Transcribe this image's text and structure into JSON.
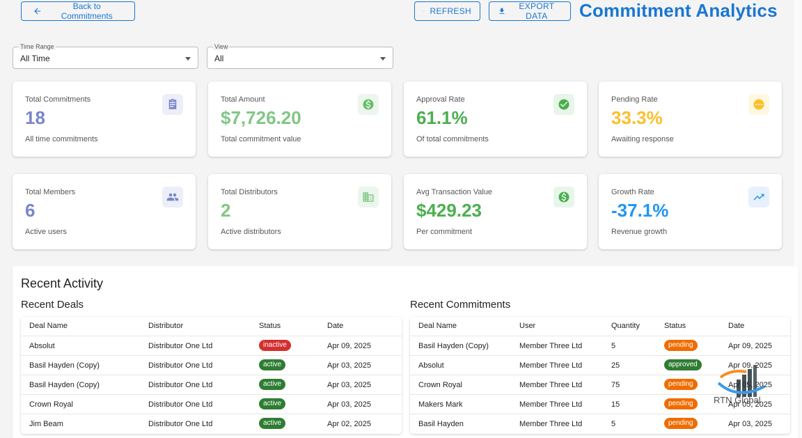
{
  "header": {
    "back_label": "Back to Commitments",
    "refresh_label": "Refresh",
    "export_label": "Export Data",
    "title": "Commitment Analytics"
  },
  "filters": {
    "time_range": {
      "label": "Time Range",
      "value": "All Time"
    },
    "view": {
      "label": "View",
      "value": "All"
    }
  },
  "cards": [
    {
      "title": "Total Commitments",
      "value": "18",
      "sub": "All time commitments",
      "color": "#7986cb",
      "icon": "clipboard-icon"
    },
    {
      "title": "Total Amount",
      "value": "$7,726.20",
      "sub": "Total commitment value",
      "color": "#81c784",
      "icon": "dollar-icon"
    },
    {
      "title": "Approval Rate",
      "value": "61.1%",
      "sub": "Of total commitments",
      "color": "#4caf50",
      "icon": "check-circle-icon"
    },
    {
      "title": "Pending Rate",
      "value": "33.3%",
      "sub": "Awaiting response",
      "color": "#fbc02d",
      "icon": "pending-icon"
    },
    {
      "title": "Total Members",
      "value": "6",
      "sub": "Active users",
      "color": "#7986cb",
      "icon": "people-icon"
    },
    {
      "title": "Total Distributors",
      "value": "2",
      "sub": "Active distributors",
      "color": "#81c784",
      "icon": "building-icon"
    },
    {
      "title": "Avg Transaction Value",
      "value": "$429.23",
      "sub": "Per commitment",
      "color": "#4caf50",
      "icon": "dollar-icon"
    },
    {
      "title": "Growth Rate",
      "value": "-37.1%",
      "sub": "Revenue growth",
      "color": "#2196f3",
      "icon": "trending-up-icon"
    }
  ],
  "activity": {
    "title": "Recent Activity",
    "deals": {
      "title": "Recent Deals",
      "columns": [
        "Deal Name",
        "Distributor",
        "Status",
        "Date"
      ],
      "rows": [
        {
          "deal": "Absolut",
          "distributor": "Distributor One Ltd",
          "status": "inactive",
          "date": "Apr 09, 2025"
        },
        {
          "deal": "Basil Hayden (Copy)",
          "distributor": "Distributor One Ltd",
          "status": "active",
          "date": "Apr 03, 2025"
        },
        {
          "deal": "Basil Hayden (Copy)",
          "distributor": "Distributor One Ltd",
          "status": "active",
          "date": "Apr 03, 2025"
        },
        {
          "deal": "Crown Royal",
          "distributor": "Distributor One Ltd",
          "status": "active",
          "date": "Apr 03, 2025"
        },
        {
          "deal": "Jim Beam",
          "distributor": "Distributor One Ltd",
          "status": "active",
          "date": "Apr 02, 2025"
        }
      ]
    },
    "commitments": {
      "title": "Recent Commitments",
      "columns": [
        "Deal Name",
        "User",
        "Quantity",
        "Status",
        "Date"
      ],
      "rows": [
        {
          "deal": "Basil Hayden (Copy)",
          "user": "Member Three Ltd",
          "qty": "5",
          "status": "pending",
          "date": "Apr 09, 2025"
        },
        {
          "deal": "Absolut",
          "user": "Member Three Ltd",
          "qty": "25",
          "status": "approved",
          "date": "Apr 09, 2025"
        },
        {
          "deal": "Crown Royal",
          "user": "Member Three Ltd",
          "qty": "75",
          "status": "pending",
          "date": "Apr 05, 2025"
        },
        {
          "deal": "Makers Mark",
          "user": "Member Three Ltd",
          "qty": "15",
          "status": "pending",
          "date": "Apr 05, 2025"
        },
        {
          "deal": "Basil Hayden",
          "user": "Member Three Ltd",
          "qty": "5",
          "status": "pending",
          "date": "Apr 03, 2025"
        }
      ]
    }
  },
  "status_colors": {
    "inactive": "#d32f2f",
    "active": "#2e7d32",
    "pending": "#ef6c00",
    "approved": "#2e7d32"
  },
  "watermark": {
    "text": "RTN Global",
    "icon": "rtn-logo-icon"
  }
}
